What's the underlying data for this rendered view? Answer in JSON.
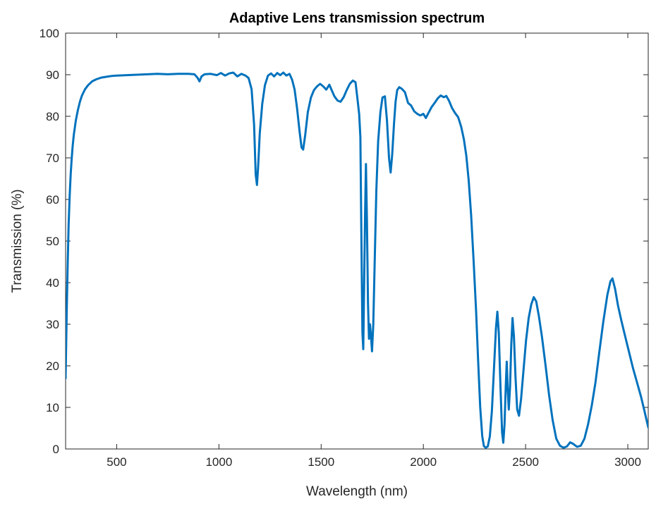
{
  "chart_data": {
    "type": "line",
    "title": "Adaptive Lens transmission spectrum",
    "xlabel": "Wavelength (nm)",
    "ylabel": "Transmission (%)",
    "xlim": [
      250,
      3100
    ],
    "ylim": [
      0,
      100
    ],
    "xticks": [
      500,
      1000,
      1500,
      2000,
      2500,
      3000
    ],
    "yticks": [
      0,
      10,
      20,
      30,
      40,
      50,
      60,
      70,
      80,
      90,
      100
    ],
    "grid": false,
    "legend": null,
    "line_color": "#0072BD",
    "line_width": 3,
    "axis_color": "#262626",
    "background_color": "#ffffff",
    "series": [
      {
        "name": "transmission",
        "points": [
          [
            250,
            17
          ],
          [
            253,
            26
          ],
          [
            256,
            34
          ],
          [
            260,
            44
          ],
          [
            265,
            54
          ],
          [
            270,
            61
          ],
          [
            275,
            66
          ],
          [
            280,
            70
          ],
          [
            285,
            73
          ],
          [
            290,
            75.5
          ],
          [
            300,
            79
          ],
          [
            310,
            81.5
          ],
          [
            320,
            83.5
          ],
          [
            330,
            85
          ],
          [
            345,
            86.5
          ],
          [
            360,
            87.5
          ],
          [
            380,
            88.4
          ],
          [
            400,
            88.9
          ],
          [
            425,
            89.3
          ],
          [
            450,
            89.5
          ],
          [
            475,
            89.7
          ],
          [
            500,
            89.8
          ],
          [
            550,
            89.9
          ],
          [
            600,
            90
          ],
          [
            650,
            90.1
          ],
          [
            700,
            90.2
          ],
          [
            750,
            90.1
          ],
          [
            800,
            90.2
          ],
          [
            850,
            90.2
          ],
          [
            880,
            90.1
          ],
          [
            895,
            89.3
          ],
          [
            905,
            88.4
          ],
          [
            915,
            89.6
          ],
          [
            930,
            90.1
          ],
          [
            960,
            90.2
          ],
          [
            990,
            89.9
          ],
          [
            1010,
            90.4
          ],
          [
            1030,
            89.8
          ],
          [
            1050,
            90.3
          ],
          [
            1070,
            90.5
          ],
          [
            1090,
            89.6
          ],
          [
            1110,
            90.2
          ],
          [
            1130,
            89.8
          ],
          [
            1145,
            89.2
          ],
          [
            1160,
            86.5
          ],
          [
            1172,
            78
          ],
          [
            1180,
            66
          ],
          [
            1186,
            63.5
          ],
          [
            1192,
            68
          ],
          [
            1200,
            76
          ],
          [
            1212,
            83
          ],
          [
            1225,
            87.5
          ],
          [
            1240,
            89.8
          ],
          [
            1255,
            90.3
          ],
          [
            1270,
            89.6
          ],
          [
            1285,
            90.4
          ],
          [
            1300,
            89.9
          ],
          [
            1315,
            90.5
          ],
          [
            1330,
            89.8
          ],
          [
            1345,
            90.2
          ],
          [
            1358,
            88.8
          ],
          [
            1370,
            86.5
          ],
          [
            1382,
            82
          ],
          [
            1394,
            76.5
          ],
          [
            1404,
            72.5
          ],
          [
            1412,
            72
          ],
          [
            1422,
            75.5
          ],
          [
            1435,
            81
          ],
          [
            1450,
            84.5
          ],
          [
            1465,
            86.3
          ],
          [
            1480,
            87.2
          ],
          [
            1495,
            87.8
          ],
          [
            1510,
            87.2
          ],
          [
            1525,
            86.4
          ],
          [
            1540,
            87.6
          ],
          [
            1552,
            86.2
          ],
          [
            1565,
            84.8
          ],
          [
            1580,
            83.8
          ],
          [
            1595,
            83.5
          ],
          [
            1610,
            84.6
          ],
          [
            1625,
            86.3
          ],
          [
            1640,
            87.8
          ],
          [
            1655,
            88.6
          ],
          [
            1668,
            88.2
          ],
          [
            1678,
            84
          ],
          [
            1686,
            80.5
          ],
          [
            1692,
            75
          ],
          [
            1697,
            50
          ],
          [
            1702,
            28
          ],
          [
            1706,
            24
          ],
          [
            1710,
            38
          ],
          [
            1715,
            57
          ],
          [
            1719,
            68.5
          ],
          [
            1724,
            55
          ],
          [
            1729,
            35
          ],
          [
            1734,
            26.5
          ],
          [
            1739,
            30
          ],
          [
            1744,
            27
          ],
          [
            1749,
            23.5
          ],
          [
            1755,
            30
          ],
          [
            1762,
            45
          ],
          [
            1770,
            62
          ],
          [
            1779,
            74
          ],
          [
            1790,
            81
          ],
          [
            1800,
            84.5
          ],
          [
            1812,
            84.8
          ],
          [
            1822,
            79
          ],
          [
            1832,
            70
          ],
          [
            1840,
            66.5
          ],
          [
            1848,
            71
          ],
          [
            1856,
            78
          ],
          [
            1864,
            83.5
          ],
          [
            1872,
            86.3
          ],
          [
            1882,
            87
          ],
          [
            1895,
            86.6
          ],
          [
            1910,
            85.8
          ],
          [
            1925,
            83.2
          ],
          [
            1940,
            82.6
          ],
          [
            1955,
            81.2
          ],
          [
            1970,
            80.6
          ],
          [
            1985,
            80.2
          ],
          [
            2000,
            80.6
          ],
          [
            2012,
            79.6
          ],
          [
            2025,
            80.8
          ],
          [
            2040,
            82.2
          ],
          [
            2055,
            83.2
          ],
          [
            2070,
            84.3
          ],
          [
            2085,
            85
          ],
          [
            2100,
            84.6
          ],
          [
            2112,
            84.9
          ],
          [
            2125,
            83.8
          ],
          [
            2140,
            82
          ],
          [
            2155,
            80.8
          ],
          [
            2170,
            79.8
          ],
          [
            2185,
            77.5
          ],
          [
            2198,
            74.5
          ],
          [
            2210,
            70.5
          ],
          [
            2222,
            64.5
          ],
          [
            2234,
            56
          ],
          [
            2246,
            45
          ],
          [
            2258,
            33
          ],
          [
            2268,
            21
          ],
          [
            2278,
            10
          ],
          [
            2288,
            3
          ],
          [
            2296,
            0.7
          ],
          [
            2305,
            0.3
          ],
          [
            2315,
            0.6
          ],
          [
            2325,
            3
          ],
          [
            2335,
            9
          ],
          [
            2345,
            19
          ],
          [
            2355,
            29
          ],
          [
            2362,
            33
          ],
          [
            2369,
            28
          ],
          [
            2377,
            15
          ],
          [
            2385,
            4
          ],
          [
            2391,
            1.5
          ],
          [
            2397,
            6
          ],
          [
            2403,
            15
          ],
          [
            2408,
            21
          ],
          [
            2413,
            14
          ],
          [
            2418,
            9.5
          ],
          [
            2424,
            15
          ],
          [
            2430,
            25
          ],
          [
            2436,
            31.5
          ],
          [
            2443,
            27
          ],
          [
            2451,
            17
          ],
          [
            2459,
            9.5
          ],
          [
            2468,
            8
          ],
          [
            2478,
            12
          ],
          [
            2490,
            19
          ],
          [
            2502,
            26
          ],
          [
            2515,
            31.5
          ],
          [
            2528,
            34.8
          ],
          [
            2540,
            36.5
          ],
          [
            2552,
            35.5
          ],
          [
            2565,
            32
          ],
          [
            2580,
            27
          ],
          [
            2598,
            20
          ],
          [
            2615,
            13
          ],
          [
            2632,
            7
          ],
          [
            2650,
            2.5
          ],
          [
            2668,
            0.8
          ],
          [
            2685,
            0.3
          ],
          [
            2702,
            0.6
          ],
          [
            2718,
            1.6
          ],
          [
            2734,
            1.2
          ],
          [
            2752,
            0.5
          ],
          [
            2770,
            0.8
          ],
          [
            2788,
            2.5
          ],
          [
            2806,
            6
          ],
          [
            2824,
            10.5
          ],
          [
            2842,
            16
          ],
          [
            2860,
            23
          ],
          [
            2880,
            30.5
          ],
          [
            2900,
            37
          ],
          [
            2915,
            40.3
          ],
          [
            2925,
            41
          ],
          [
            2938,
            38.5
          ],
          [
            2952,
            34.5
          ],
          [
            2968,
            31
          ],
          [
            2985,
            27.5
          ],
          [
            3005,
            23.5
          ],
          [
            3025,
            19.5
          ],
          [
            3045,
            16
          ],
          [
            3065,
            12.5
          ],
          [
            3082,
            9
          ],
          [
            3100,
            5.2
          ]
        ]
      }
    ]
  }
}
